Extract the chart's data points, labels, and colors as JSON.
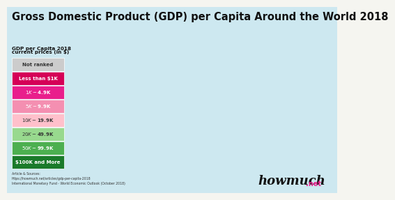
{
  "title": "Gross Domestic Product (GDP) per Capita Around the World 2018",
  "legend_title_line1": "GDP per Capita 2018",
  "legend_title_line2": "current prices (in $)",
  "legend_items": [
    {
      "label": "$100K and More",
      "color": "#1a7a2a"
    },
    {
      "label": "$50K - $99.9K",
      "color": "#4caf50"
    },
    {
      "label": "$20K - $49.9K",
      "color": "#98d98e"
    },
    {
      "label": "$10K - $19.9K",
      "color": "#ffc0cb"
    },
    {
      "label": "$5K - $9.9K",
      "color": "#f48fb1"
    },
    {
      "label": "$1K - $4.9K",
      "color": "#e91e8c"
    },
    {
      "label": "Less than $1K",
      "color": "#d50057"
    },
    {
      "label": "Not ranked",
      "color": "#cccccc"
    }
  ],
  "background_color": "#f5f5f0",
  "ocean_color": "#cde8f0",
  "title_fontsize": 10.5,
  "watermark": "howmuch",
  "watermark_suffix": ".net",
  "source_text": "Article & Sources:\nhttps://howmuch.net/articles/gdp-per-capita-2018\nInternational Monetary Fund - World Economic Outlook (October 2018)",
  "country_colors": {
    "USA": "#1a7a2a",
    "CAN": "#98d98e",
    "GRL": "#cccccc",
    "MEX": "#ffc0cb",
    "GTM": "#e91e8c",
    "BLZ": "#e91e8c",
    "HND": "#e91e8c",
    "SLV": "#e91e8c",
    "NIC": "#e91e8c",
    "CRI": "#f48fb1",
    "PAN": "#f48fb1",
    "CUB": "#f48fb1",
    "JAM": "#f48fb1",
    "HTI": "#d50057",
    "DOM": "#f48fb1",
    "PRI": "#4caf50",
    "TTO": "#f48fb1",
    "COL": "#f48fb1",
    "VEN": "#f48fb1",
    "GUY": "#e91e8c",
    "SUR": "#f48fb1",
    "ECU": "#f48fb1",
    "PER": "#f48fb1",
    "BOL": "#e91e8c",
    "BRA": "#ffc0cb",
    "CHL": "#f48fb1",
    "ARG": "#ffc0cb",
    "PRY": "#e91e8c",
    "URY": "#f48fb1",
    "GBR": "#4caf50",
    "IRL": "#4caf50",
    "ISL": "#1a7a2a",
    "NOR": "#1a7a2a",
    "SWE": "#4caf50",
    "FIN": "#4caf50",
    "DNK": "#1a7a2a",
    "NLD": "#4caf50",
    "BEL": "#4caf50",
    "LUX": "#1a7a2a",
    "DEU": "#4caf50",
    "FRA": "#4caf50",
    "ESP": "#98d98e",
    "PRT": "#98d98e",
    "ITA": "#98d98e",
    "CHE": "#1a7a2a",
    "AUT": "#4caf50",
    "POL": "#ffc0cb",
    "CZE": "#98d98e",
    "SVK": "#ffc0cb",
    "HUN": "#ffc0cb",
    "ROU": "#ffc0cb",
    "BGR": "#ffc0cb",
    "GRC": "#ffc0cb",
    "TUR": "#ffc0cb",
    "UKR": "#e91e8c",
    "BLR": "#f48fb1",
    "RUS": "#ffc0cb",
    "KAZ": "#f48fb1",
    "MNG": "#e91e8c",
    "CHN": "#ffc0cb",
    "JPN": "#4caf50",
    "KOR": "#98d98e",
    "PRK": "#cccccc",
    "TWN": "#98d98e",
    "MYS": "#ffc0cb",
    "IDN": "#e91e8c",
    "PHL": "#e91e8c",
    "VNM": "#e91e8c",
    "THA": "#f48fb1",
    "MMR": "#d50057",
    "KHM": "#e91e8c",
    "LAO": "#e91e8c",
    "IND": "#e91e8c",
    "PAK": "#e91e8c",
    "BGD": "#d50057",
    "NPL": "#d50057",
    "LKA": "#f48fb1",
    "AFG": "#d50057",
    "IRN": "#f48fb1",
    "IRQ": "#f48fb1",
    "SAU": "#4caf50",
    "ARE": "#1a7a2a",
    "QAT": "#1a7a2a",
    "KWT": "#1a7a2a",
    "BHR": "#4caf50",
    "OMN": "#98d98e",
    "YEM": "#d50057",
    "SYR": "#d50057",
    "LBN": "#ffc0cb",
    "ISR": "#4caf50",
    "JOR": "#f48fb1",
    "EGY": "#e91e8c",
    "LBY": "#f48fb1",
    "TUN": "#f48fb1",
    "DZA": "#f48fb1",
    "MAR": "#e91e8c",
    "MRT": "#d50057",
    "SEN": "#d50057",
    "GMB": "#d50057",
    "GNB": "#d50057",
    "GIN": "#d50057",
    "SLE": "#d50057",
    "LBR": "#d50057",
    "CIV": "#d50057",
    "GHA": "#e91e8c",
    "BFA": "#d50057",
    "MLI": "#d50057",
    "NER": "#d50057",
    "NGA": "#e91e8c",
    "CMR": "#d50057",
    "TCD": "#d50057",
    "CAF": "#d50057",
    "COD": "#d50057",
    "COG": "#e91e8c",
    "GAB": "#f48fb1",
    "GNQ": "#f48fb1",
    "AGO": "#e91e8c",
    "ZMB": "#e91e8c",
    "ZWE": "#d50057",
    "MOZ": "#d50057",
    "MWI": "#d50057",
    "TZA": "#d50057",
    "KEN": "#e91e8c",
    "UGA": "#d50057",
    "ETH": "#d50057",
    "SOM": "#d50057",
    "SDN": "#d50057",
    "SSD": "#d50057",
    "RWA": "#d50057",
    "BDI": "#d50057",
    "ZAF": "#f48fb1",
    "NAM": "#f48fb1",
    "BWA": "#f48fb1",
    "MDG": "#d50057",
    "AUS": "#1a7a2a",
    "NZL": "#4caf50",
    "PNG": "#e91e8c",
    "FJI": "#e91e8c",
    "SWZ": "#e91e8c",
    "LSO": "#d50057",
    "MUS": "#ffc0cb",
    "MDV": "#ffc0cb",
    "TKM": "#f48fb1",
    "UZB": "#d50057",
    "TJK": "#d50057",
    "KGZ": "#d50057",
    "AZE": "#f48fb1",
    "GEO": "#f48fb1",
    "ARM": "#f48fb1",
    "MDA": "#e91e8c",
    "SRB": "#f48fb1",
    "HRV": "#ffc0cb",
    "BIH": "#f48fb1",
    "MKD": "#f48fb1",
    "ALB": "#f48fb1",
    "MNE": "#f48fb1",
    "SVN": "#4caf50",
    "EST": "#98d98e",
    "LVA": "#ffc0cb",
    "LTU": "#ffc0cb"
  }
}
